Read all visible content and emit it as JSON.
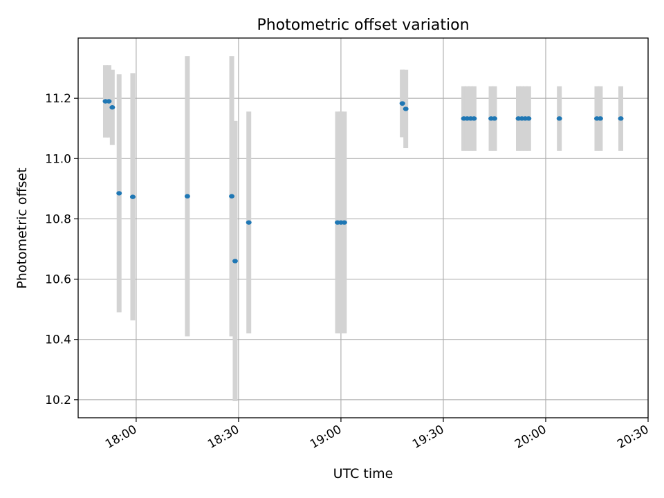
{
  "chart_data": {
    "type": "scatter",
    "title": "Photometric offset variation",
    "xlabel": "UTC time",
    "ylabel": "Photometric offset",
    "x_unit": "UTC time (HH:MM)",
    "xlim": [
      "17:43",
      "20:30"
    ],
    "ylim": [
      10.14,
      11.4
    ],
    "xticks": [
      "18:00",
      "18:30",
      "19:00",
      "19:30",
      "20:00",
      "20:30"
    ],
    "yticks": [
      10.2,
      10.4,
      10.6,
      10.8,
      11.0,
      11.2
    ],
    "grid": true,
    "marker_color": "#1f77b4",
    "errorbar_color": "#d3d3d3",
    "points": [
      {
        "x": "17:51",
        "y": 11.19,
        "err": 0.12
      },
      {
        "x": "17:52",
        "y": 11.19,
        "err": 0.12
      },
      {
        "x": "17:53",
        "y": 11.17,
        "err": 0.125
      },
      {
        "x": "17:55",
        "y": 10.885,
        "err": 0.395
      },
      {
        "x": "17:59",
        "y": 10.873,
        "err": 0.41
      },
      {
        "x": "18:15",
        "y": 10.875,
        "err": 0.465
      },
      {
        "x": "18:28",
        "y": 10.875,
        "err": 0.465
      },
      {
        "x": "18:29",
        "y": 10.66,
        "err": 0.465
      },
      {
        "x": "18:33",
        "y": 10.788,
        "err": 0.368
      },
      {
        "x": "18:59",
        "y": 10.788,
        "err": 0.368
      },
      {
        "x": "19:00",
        "y": 10.788,
        "err": 0.368
      },
      {
        "x": "19:01",
        "y": 10.788,
        "err": 0.368
      },
      {
        "x": "19:18",
        "y": 11.183,
        "err": 0.112
      },
      {
        "x": "19:18",
        "y": 11.183,
        "err": 0.112
      },
      {
        "x": "19:19",
        "y": 11.165,
        "err": 0.13
      },
      {
        "x": "19:36",
        "y": 11.133,
        "err": 0.107
      },
      {
        "x": "19:37",
        "y": 11.133,
        "err": 0.107
      },
      {
        "x": "19:38",
        "y": 11.133,
        "err": 0.107
      },
      {
        "x": "19:39",
        "y": 11.133,
        "err": 0.107
      },
      {
        "x": "19:44",
        "y": 11.133,
        "err": 0.107
      },
      {
        "x": "19:45",
        "y": 11.133,
        "err": 0.107
      },
      {
        "x": "19:52",
        "y": 11.133,
        "err": 0.107
      },
      {
        "x": "19:53",
        "y": 11.133,
        "err": 0.107
      },
      {
        "x": "19:54",
        "y": 11.133,
        "err": 0.107
      },
      {
        "x": "19:55",
        "y": 11.133,
        "err": 0.107
      },
      {
        "x": "20:04",
        "y": 11.133,
        "err": 0.107
      },
      {
        "x": "20:15",
        "y": 11.133,
        "err": 0.107
      },
      {
        "x": "20:16",
        "y": 11.133,
        "err": 0.107
      },
      {
        "x": "20:22",
        "y": 11.133,
        "err": 0.107
      }
    ]
  }
}
